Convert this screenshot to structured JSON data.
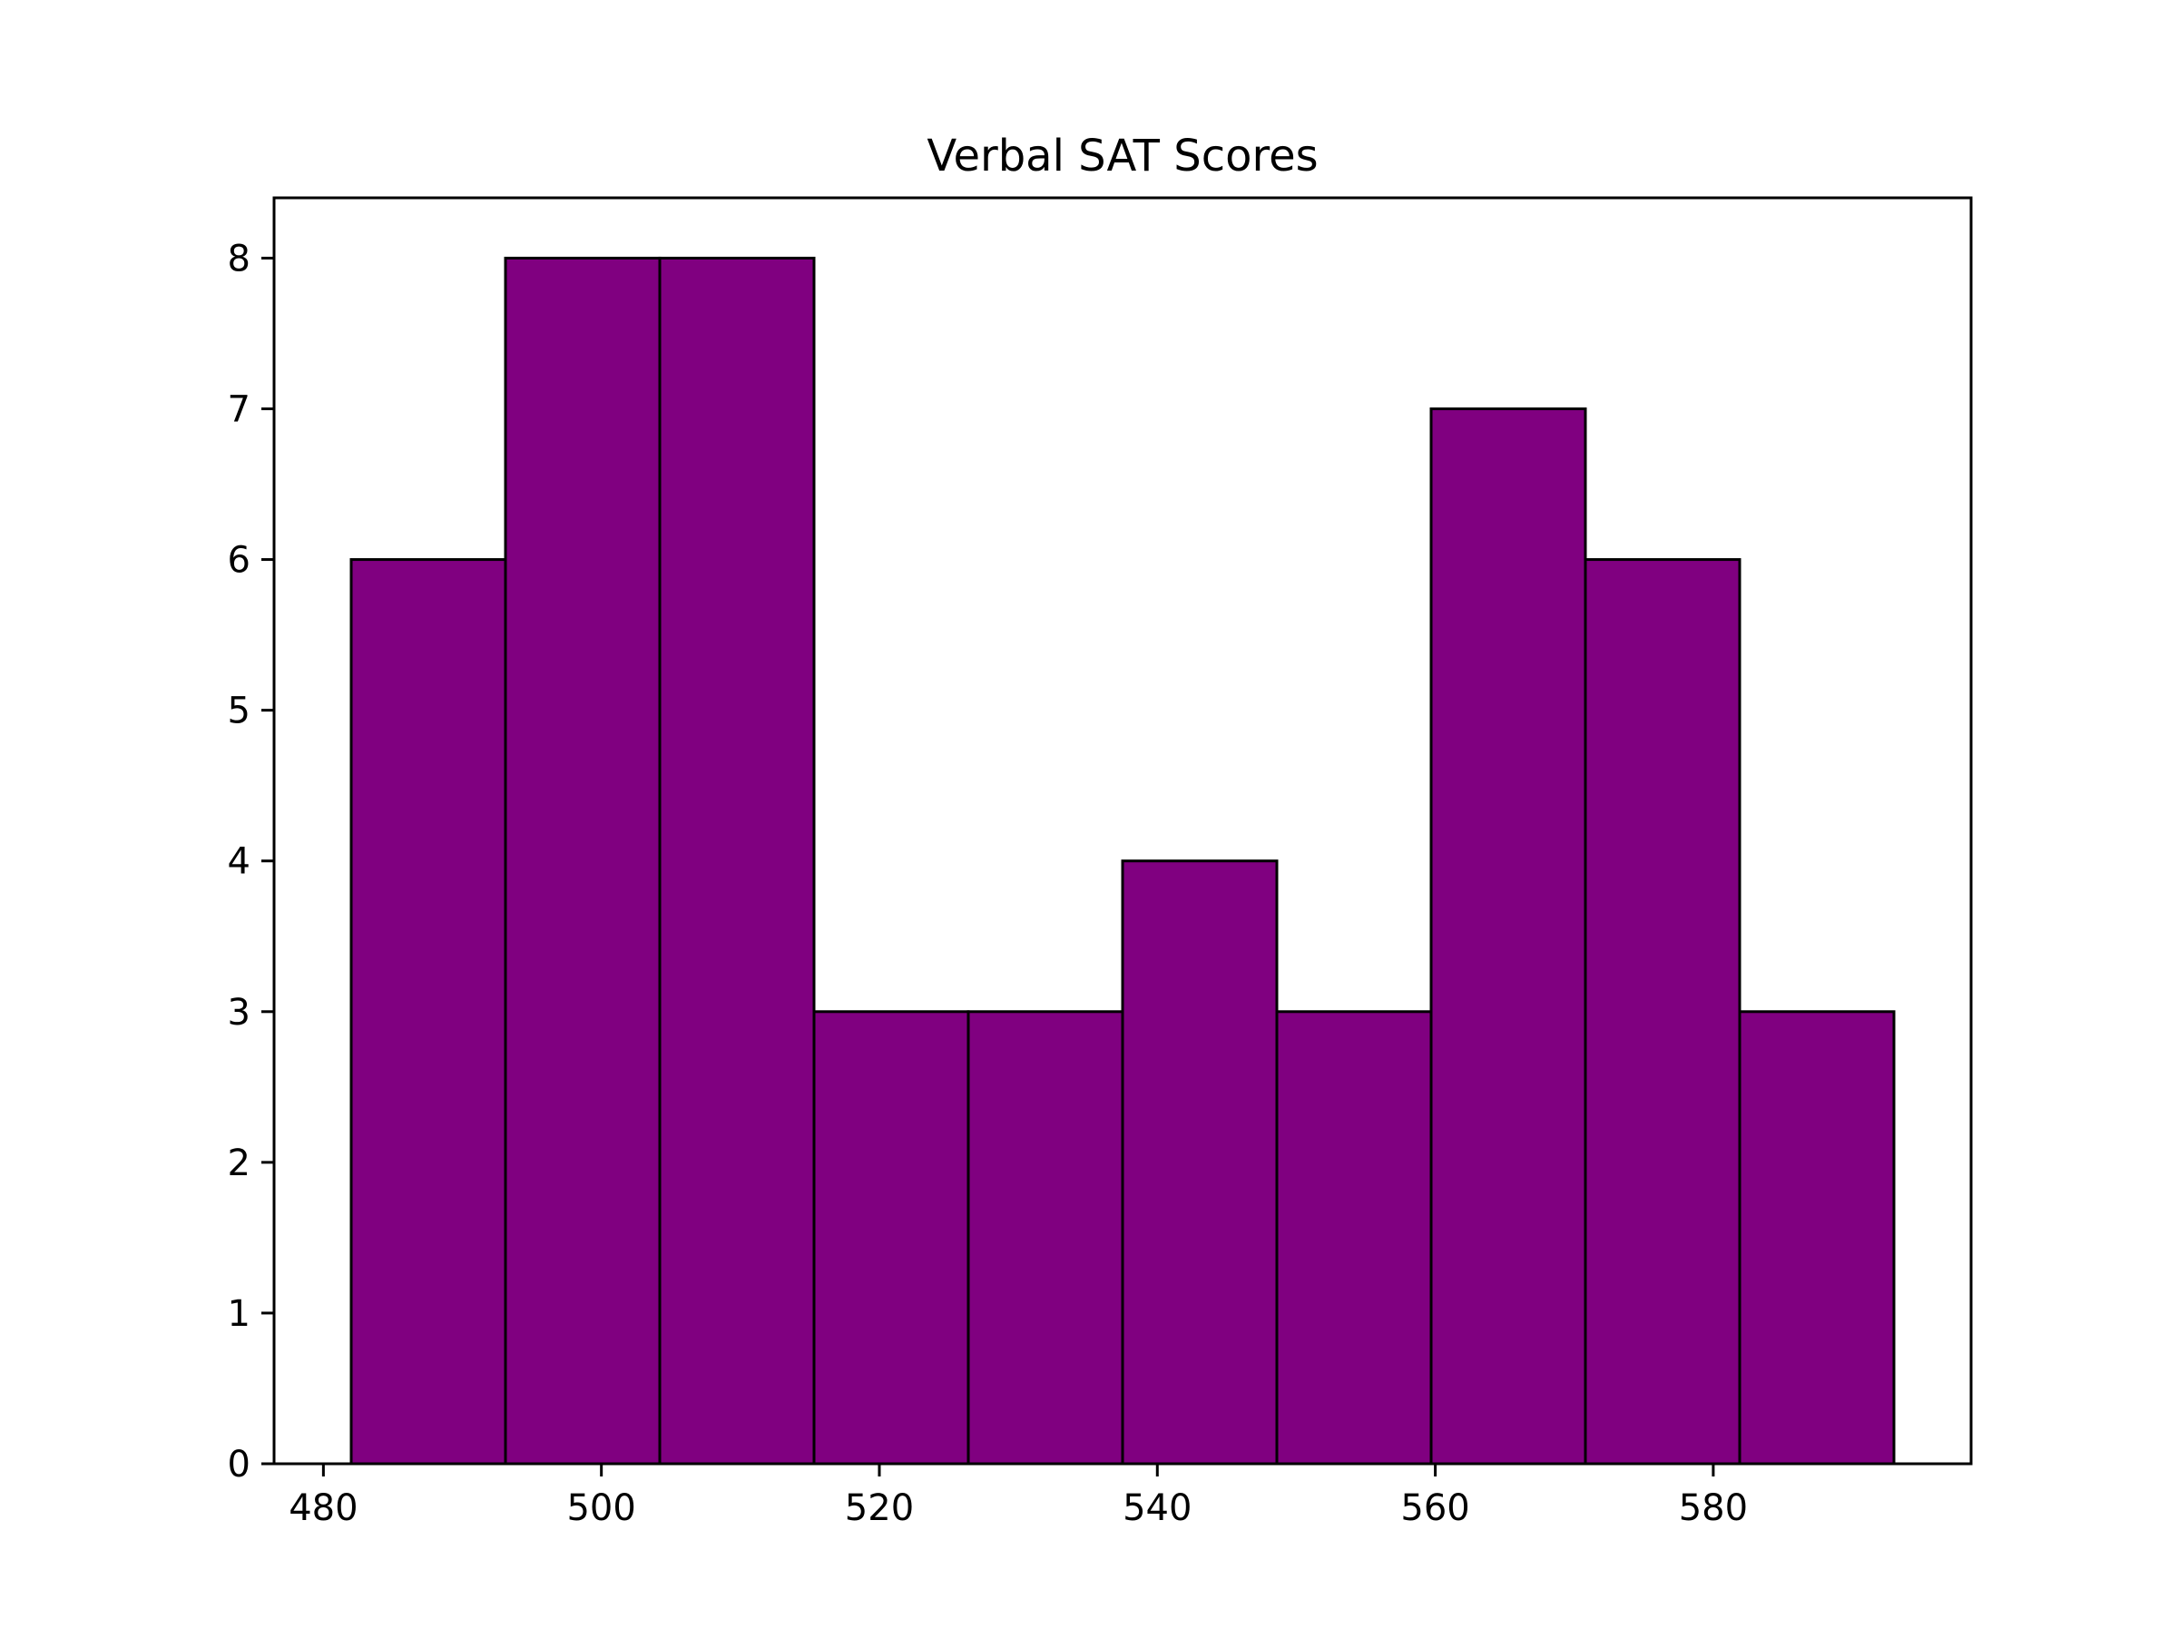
{
  "chart_data": {
    "type": "bar",
    "title": "Verbal SAT Scores",
    "xlabel": "",
    "ylabel": "",
    "bins": [
      {
        "x0": 482.0,
        "x1": 493.1,
        "count": 6
      },
      {
        "x0": 493.1,
        "x1": 504.2,
        "count": 8
      },
      {
        "x0": 504.2,
        "x1": 515.3,
        "count": 8
      },
      {
        "x0": 515.3,
        "x1": 526.4,
        "count": 3
      },
      {
        "x0": 526.4,
        "x1": 537.5,
        "count": 3
      },
      {
        "x0": 537.5,
        "x1": 548.6,
        "count": 4
      },
      {
        "x0": 548.6,
        "x1": 559.7,
        "count": 3
      },
      {
        "x0": 559.7,
        "x1": 570.8,
        "count": 7
      },
      {
        "x0": 570.8,
        "x1": 581.9,
        "count": 6
      },
      {
        "x0": 581.9,
        "x1": 593.0,
        "count": 3
      }
    ],
    "xlim": [
      476.45,
      598.55
    ],
    "ylim": [
      0,
      8.4
    ],
    "x_ticks": [
      480,
      500,
      520,
      540,
      560,
      580
    ],
    "y_ticks": [
      0,
      1,
      2,
      3,
      4,
      5,
      6,
      7,
      8
    ],
    "grid": false,
    "bar_color": "#800080",
    "edge_color": "#000000"
  }
}
